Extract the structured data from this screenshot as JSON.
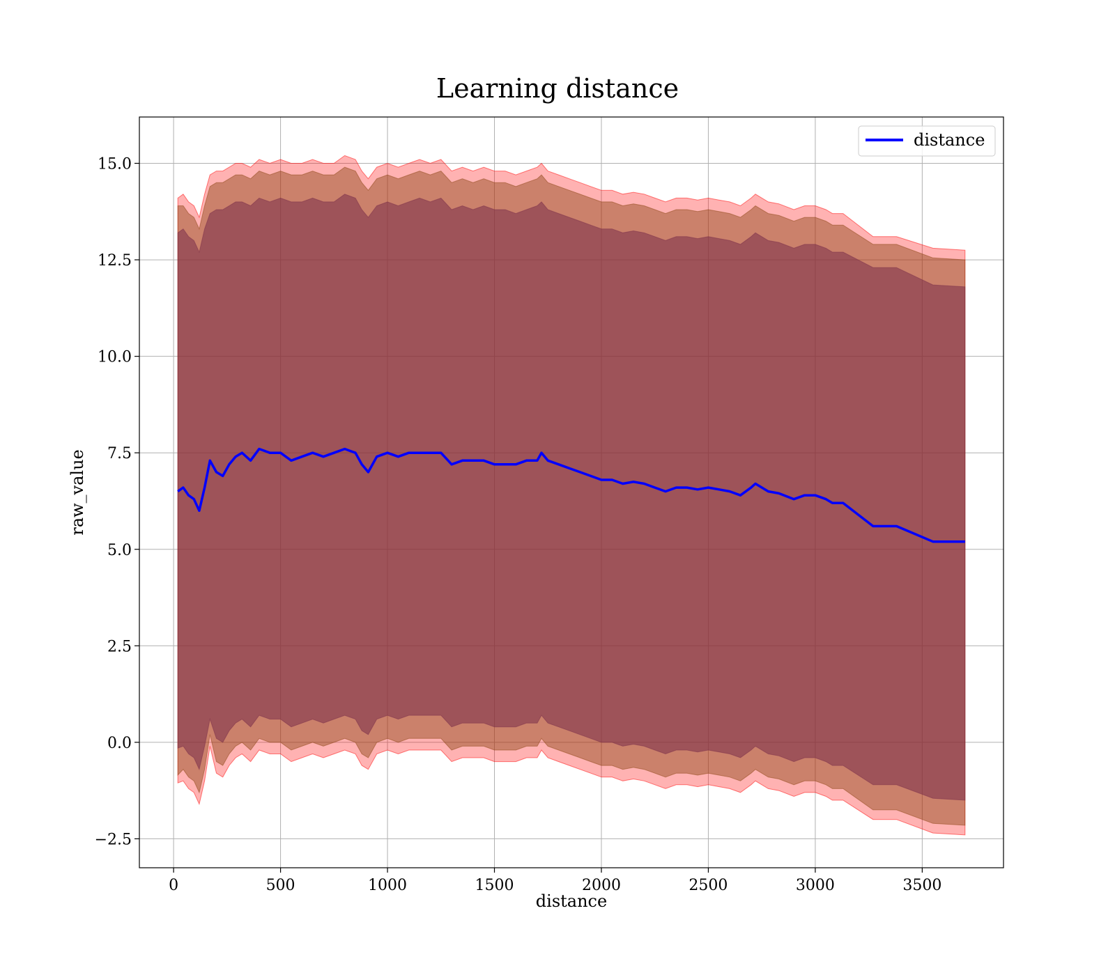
{
  "chart_data": {
    "type": "line",
    "title": "Learning distance",
    "xlabel": "distance",
    "ylabel": "raw_value",
    "xlim": [
      -160,
      3880
    ],
    "ylim": [
      -3.25,
      16.2
    ],
    "xticks": [
      0,
      500,
      1000,
      1500,
      2000,
      2500,
      3000,
      3500
    ],
    "xtick_labels": [
      "0",
      "500",
      "1000",
      "1500",
      "2000",
      "2500",
      "3000",
      "3500"
    ],
    "yticks": [
      -2.5,
      0.0,
      2.5,
      5.0,
      7.5,
      10.0,
      12.5,
      15.0
    ],
    "ytick_labels": [
      "−2.5",
      "0.0",
      "2.5",
      "5.0",
      "7.5",
      "10.0",
      "12.5",
      "15.0"
    ],
    "grid": true,
    "legend_position": "top-right",
    "colors": {
      "line": "#0000ff",
      "outer_band": "#ff0000",
      "mid_band": "#8b4513",
      "inner_band": "#7a2e4a"
    },
    "series": [
      {
        "name": "distance",
        "x": [
          20,
          45,
          70,
          95,
          120,
          145,
          170,
          200,
          230,
          260,
          290,
          320,
          360,
          400,
          450,
          500,
          550,
          600,
          650,
          700,
          750,
          800,
          850,
          880,
          910,
          950,
          1000,
          1050,
          1100,
          1150,
          1200,
          1250,
          1300,
          1350,
          1400,
          1450,
          1500,
          1550,
          1600,
          1650,
          1700,
          1720,
          1750,
          1800,
          1850,
          1900,
          1950,
          2000,
          2050,
          2100,
          2150,
          2200,
          2250,
          2300,
          2350,
          2400,
          2450,
          2500,
          2550,
          2600,
          2650,
          2700,
          2720,
          2780,
          2830,
          2900,
          2950,
          3000,
          3050,
          3080,
          3130,
          3270,
          3380,
          3550,
          3700
        ],
        "y": [
          6.5,
          6.6,
          6.4,
          6.3,
          6.0,
          6.6,
          7.3,
          7.0,
          6.9,
          7.2,
          7.4,
          7.5,
          7.3,
          7.6,
          7.5,
          7.5,
          7.3,
          7.4,
          7.5,
          7.4,
          7.5,
          7.6,
          7.5,
          7.2,
          7.0,
          7.4,
          7.5,
          7.4,
          7.5,
          7.5,
          7.5,
          7.5,
          7.2,
          7.3,
          7.3,
          7.3,
          7.2,
          7.2,
          7.2,
          7.3,
          7.3,
          7.5,
          7.3,
          7.2,
          7.1,
          7.0,
          6.9,
          6.8,
          6.8,
          6.7,
          6.75,
          6.7,
          6.6,
          6.5,
          6.6,
          6.6,
          6.55,
          6.6,
          6.55,
          6.5,
          6.4,
          6.6,
          6.7,
          6.5,
          6.45,
          6.3,
          6.4,
          6.4,
          6.3,
          6.2,
          6.2,
          5.6,
          5.6,
          5.2,
          5.2
        ]
      }
    ],
    "bands": [
      {
        "upper": [
          14.1,
          14.2,
          14.0,
          13.9,
          13.6,
          14.2,
          14.7,
          14.8,
          14.8,
          14.9,
          15.0,
          15.0,
          14.9,
          15.1,
          15.0,
          15.1,
          15.0,
          15.0,
          15.1,
          15.0,
          15.0,
          15.2,
          15.1,
          14.8,
          14.6,
          14.9,
          15.0,
          14.9,
          15.0,
          15.1,
          15.0,
          15.1,
          14.8,
          14.9,
          14.8,
          14.9,
          14.8,
          14.8,
          14.7,
          14.8,
          14.9,
          15.0,
          14.8,
          14.7,
          14.6,
          14.5,
          14.4,
          14.3,
          14.3,
          14.2,
          14.25,
          14.2,
          14.1,
          14.0,
          14.1,
          14.1,
          14.05,
          14.1,
          14.05,
          14.0,
          13.9,
          14.1,
          14.2,
          14.0,
          13.95,
          13.8,
          13.9,
          13.9,
          13.8,
          13.7,
          13.7,
          13.1,
          13.1,
          12.8,
          12.75
        ],
        "lower": [
          -1.05,
          -1.0,
          -1.2,
          -1.3,
          -1.6,
          -1.0,
          -0.1,
          -0.8,
          -0.9,
          -0.6,
          -0.4,
          -0.3,
          -0.5,
          -0.2,
          -0.3,
          -0.3,
          -0.5,
          -0.4,
          -0.3,
          -0.4,
          -0.3,
          -0.2,
          -0.3,
          -0.6,
          -0.7,
          -0.3,
          -0.2,
          -0.3,
          -0.2,
          -0.2,
          -0.2,
          -0.2,
          -0.5,
          -0.4,
          -0.4,
          -0.4,
          -0.5,
          -0.5,
          -0.5,
          -0.4,
          -0.4,
          -0.2,
          -0.4,
          -0.5,
          -0.6,
          -0.7,
          -0.8,
          -0.9,
          -0.9,
          -1.0,
          -0.95,
          -1.0,
          -1.1,
          -1.2,
          -1.1,
          -1.1,
          -1.15,
          -1.1,
          -1.15,
          -1.2,
          -1.3,
          -1.1,
          -1.0,
          -1.2,
          -1.25,
          -1.4,
          -1.3,
          -1.3,
          -1.4,
          -1.5,
          -1.5,
          -2.0,
          -2.0,
          -2.35,
          -2.4
        ]
      },
      {
        "upper": [
          13.9,
          13.9,
          13.7,
          13.6,
          13.3,
          13.9,
          14.4,
          14.5,
          14.5,
          14.6,
          14.7,
          14.7,
          14.6,
          14.8,
          14.7,
          14.8,
          14.7,
          14.7,
          14.8,
          14.7,
          14.7,
          14.9,
          14.8,
          14.5,
          14.3,
          14.6,
          14.7,
          14.6,
          14.7,
          14.8,
          14.7,
          14.8,
          14.5,
          14.6,
          14.5,
          14.6,
          14.5,
          14.5,
          14.4,
          14.5,
          14.6,
          14.7,
          14.5,
          14.4,
          14.3,
          14.2,
          14.1,
          14.0,
          14.0,
          13.9,
          13.95,
          13.9,
          13.8,
          13.7,
          13.8,
          13.8,
          13.75,
          13.8,
          13.75,
          13.7,
          13.6,
          13.8,
          13.9,
          13.7,
          13.65,
          13.5,
          13.6,
          13.6,
          13.5,
          13.4,
          13.4,
          12.9,
          12.9,
          12.55,
          12.5
        ],
        "lower": [
          -0.85,
          -0.7,
          -0.9,
          -1.0,
          -1.3,
          -0.7,
          0.2,
          -0.5,
          -0.6,
          -0.3,
          -0.1,
          0.0,
          -0.2,
          0.1,
          0.0,
          0.0,
          -0.2,
          -0.1,
          0.0,
          -0.1,
          0.0,
          0.1,
          0.0,
          -0.3,
          -0.4,
          0.0,
          0.1,
          0.0,
          0.1,
          0.1,
          0.1,
          0.1,
          -0.2,
          -0.1,
          -0.1,
          -0.1,
          -0.2,
          -0.2,
          -0.2,
          -0.1,
          -0.1,
          0.1,
          -0.1,
          -0.2,
          -0.3,
          -0.4,
          -0.5,
          -0.6,
          -0.6,
          -0.7,
          -0.65,
          -0.7,
          -0.8,
          -0.9,
          -0.8,
          -0.8,
          -0.85,
          -0.8,
          -0.85,
          -0.9,
          -1.0,
          -0.8,
          -0.7,
          -0.9,
          -0.95,
          -1.1,
          -1.0,
          -1.0,
          -1.1,
          -1.2,
          -1.2,
          -1.75,
          -1.75,
          -2.1,
          -2.15
        ]
      },
      {
        "upper": [
          13.2,
          13.3,
          13.1,
          13.0,
          12.7,
          13.3,
          13.7,
          13.8,
          13.8,
          13.9,
          14.0,
          14.0,
          13.9,
          14.1,
          14.0,
          14.1,
          14.0,
          14.0,
          14.1,
          14.0,
          14.0,
          14.2,
          14.1,
          13.8,
          13.6,
          13.9,
          14.0,
          13.9,
          14.0,
          14.1,
          14.0,
          14.1,
          13.8,
          13.9,
          13.8,
          13.9,
          13.8,
          13.8,
          13.7,
          13.8,
          13.9,
          14.0,
          13.8,
          13.7,
          13.6,
          13.5,
          13.4,
          13.3,
          13.3,
          13.2,
          13.25,
          13.2,
          13.1,
          13.0,
          13.1,
          13.1,
          13.05,
          13.1,
          13.05,
          13.0,
          12.9,
          13.1,
          13.2,
          13.0,
          12.95,
          12.8,
          12.9,
          12.9,
          12.8,
          12.7,
          12.7,
          12.3,
          12.3,
          11.85,
          11.8
        ],
        "lower": [
          -0.15,
          -0.1,
          -0.3,
          -0.4,
          -0.7,
          -0.1,
          0.6,
          0.1,
          0.0,
          0.3,
          0.5,
          0.6,
          0.4,
          0.7,
          0.6,
          0.6,
          0.4,
          0.5,
          0.6,
          0.5,
          0.6,
          0.7,
          0.6,
          0.3,
          0.2,
          0.6,
          0.7,
          0.6,
          0.7,
          0.7,
          0.7,
          0.7,
          0.4,
          0.5,
          0.5,
          0.5,
          0.4,
          0.4,
          0.4,
          0.5,
          0.5,
          0.7,
          0.5,
          0.4,
          0.3,
          0.2,
          0.1,
          0.0,
          0.0,
          -0.1,
          -0.05,
          -0.1,
          -0.2,
          -0.3,
          -0.2,
          -0.2,
          -0.25,
          -0.2,
          -0.25,
          -0.3,
          -0.4,
          -0.2,
          -0.1,
          -0.3,
          -0.35,
          -0.5,
          -0.4,
          -0.4,
          -0.5,
          -0.6,
          -0.6,
          -1.1,
          -1.1,
          -1.45,
          -1.5
        ]
      }
    ]
  }
}
